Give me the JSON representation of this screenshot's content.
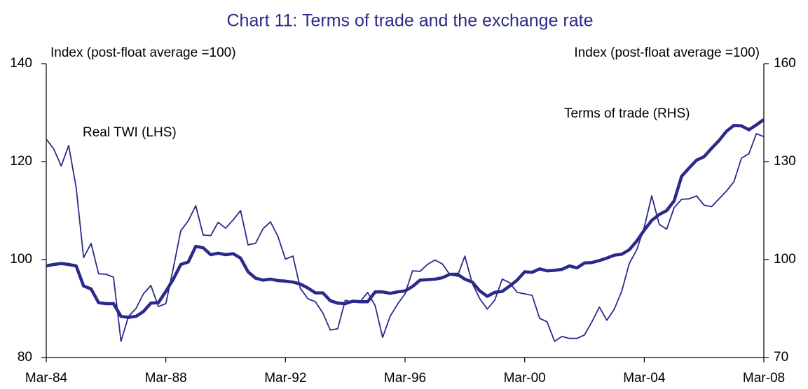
{
  "chart_data": {
    "type": "line",
    "title": "Chart 11: Terms of trade and the exchange rate",
    "ylabel": "Index (post-float average =100)",
    "y2label": "Index (post-float average =100)",
    "annotations": [
      "Real TWI (LHS)",
      "Terms of trade (RHS)"
    ],
    "categories": [
      "Mar-84",
      null,
      null,
      null,
      null,
      null,
      null,
      null,
      null,
      null,
      null,
      null,
      null,
      null,
      null,
      null,
      "Mar-88",
      null,
      null,
      null,
      null,
      null,
      null,
      null,
      null,
      null,
      null,
      null,
      null,
      null,
      null,
      null,
      "Mar-92",
      null,
      null,
      null,
      null,
      null,
      null,
      null,
      null,
      null,
      null,
      null,
      null,
      null,
      null,
      null,
      "Mar-96",
      null,
      null,
      null,
      null,
      null,
      null,
      null,
      null,
      null,
      null,
      null,
      null,
      null,
      null,
      null,
      "Mar-00",
      null,
      null,
      null,
      null,
      null,
      null,
      null,
      null,
      null,
      null,
      null,
      null,
      null,
      null,
      null,
      "Mar-04",
      null,
      null,
      null,
      null,
      null,
      null,
      null,
      null,
      null,
      null,
      null,
      null,
      null,
      null,
      null,
      "Mar-08"
    ],
    "ylim": [
      80,
      140
    ],
    "yticks": [
      80,
      100,
      120,
      140
    ],
    "y2lim": [
      70,
      160
    ],
    "y2ticks": [
      70,
      100,
      130,
      160
    ],
    "series": [
      {
        "name": "Real TWI (LHS)",
        "color": "#2b2a8a",
        "width": 1.8,
        "values": [
          124.6,
          122.6,
          119.1,
          123.3,
          114.7,
          100.4,
          103.3,
          97.1,
          97,
          96.4,
          83.3,
          88.4,
          90,
          93,
          94.7,
          90.4,
          91,
          98.3,
          105.9,
          107.9,
          111,
          105,
          104.9,
          107.6,
          106.4,
          108.1,
          110,
          103,
          103.3,
          106.3,
          107.7,
          104.7,
          100.1,
          100.7,
          94.1,
          92,
          91.4,
          89.1,
          85.6,
          85.9,
          91.7,
          91.3,
          91.4,
          93.3,
          90.6,
          84.1,
          88.4,
          90.9,
          93,
          97.7,
          97.6,
          99,
          99.9,
          99.1,
          96.9,
          96.6,
          100.7,
          95.1,
          92,
          89.9,
          91.7,
          96,
          95.3,
          93.3,
          93,
          92.7,
          88,
          87.3,
          83.3,
          84.3,
          83.9,
          83.9,
          84.6,
          87.3,
          90.3,
          87.6,
          89.9,
          93.6,
          99.2,
          102,
          106.6,
          113,
          107.2,
          106.2,
          110.6,
          112.3,
          112.4,
          113,
          111.1,
          110.8,
          112.4,
          114,
          115.9,
          120.7,
          121.6,
          125.7,
          125.1
        ]
      },
      {
        "name": "Terms of trade (RHS)",
        "color": "#2b2a8a",
        "width": 4.5,
        "axis": "y2",
        "values": [
          98.05,
          98.5,
          98.8,
          98.5,
          98.05,
          91.9,
          91,
          86.8,
          86.5,
          86.5,
          82.6,
          82.3,
          82.6,
          84.1,
          86.65,
          86.8,
          90.25,
          94,
          98.5,
          99.25,
          104.05,
          103.6,
          101.5,
          101.95,
          101.5,
          101.8,
          100.45,
          96.25,
          94.3,
          93.7,
          94,
          93.55,
          93.4,
          93.1,
          92.5,
          91.3,
          89.8,
          89.8,
          87.4,
          86.65,
          86.5,
          87.25,
          87.1,
          87.1,
          90.1,
          90.1,
          89.65,
          90.1,
          90.4,
          91.75,
          93.7,
          93.85,
          94,
          94.45,
          95.5,
          95.5,
          94,
          93.1,
          90.4,
          88.75,
          89.95,
          90.25,
          91.9,
          93.7,
          96.25,
          96.1,
          97.15,
          96.55,
          96.7,
          97,
          98.05,
          97.45,
          98.95,
          99.1,
          99.7,
          100.45,
          101.35,
          101.65,
          103,
          105.7,
          109,
          112,
          113.8,
          115,
          118,
          125.5,
          128.05,
          130.45,
          131.5,
          134.05,
          136.45,
          139.3,
          141.1,
          140.95,
          139.75,
          141.25,
          142.9
        ]
      }
    ]
  }
}
